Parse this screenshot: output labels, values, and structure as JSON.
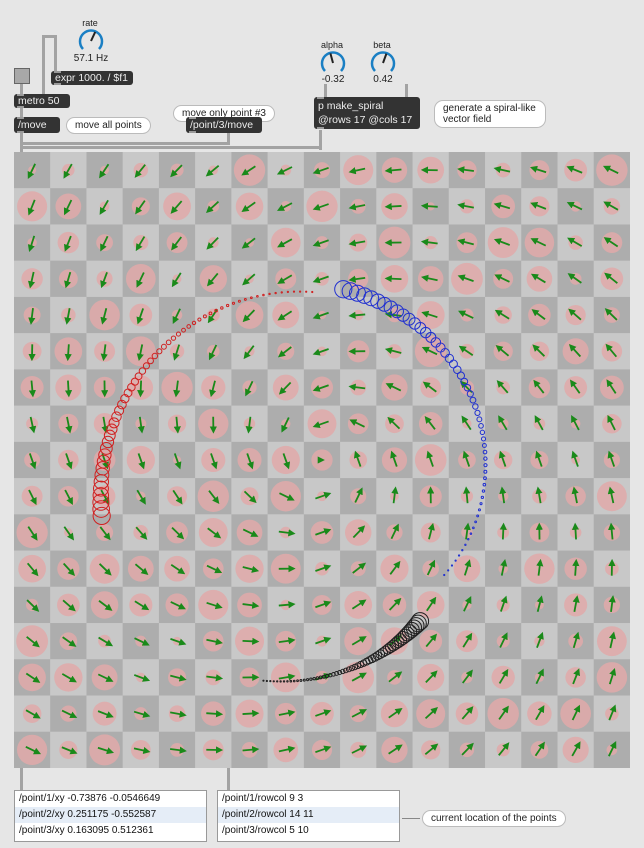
{
  "dials": {
    "rate": {
      "label": "rate",
      "value": "57.1 Hz",
      "angle": 25
    },
    "alpha": {
      "label": "alpha",
      "value": "-0.32",
      "angle": -15
    },
    "beta": {
      "label": "beta",
      "value": "0.42",
      "angle": 20
    }
  },
  "objects": {
    "expr": "expr 1000. / $f1",
    "metro": "metro 50",
    "move": "/move",
    "point3_move": "/point/3/move",
    "spiral_line1": "p make_spiral",
    "spiral_line2": "@rows 17 @cols 17"
  },
  "comments": {
    "move_all": "move all points",
    "move_only": "move only point #3",
    "spiral": "generate a spiral-like vector field",
    "current": "current location of the points"
  },
  "grid": {
    "rows": 17,
    "cols": 17,
    "alpha": -0.32,
    "beta": 0.42
  },
  "xy_messages": [
    "/point/1/xy -0.73876 -0.0546649",
    "/point/2/xy 0.251175 -0.552587",
    "/point/3/xy 0.163095 0.512361"
  ],
  "rowcol_messages": [
    "/point/1/rowcol 9 3",
    "/point/2/rowcol 14 11",
    "/point/3/rowcol 5 10"
  ],
  "colors": {
    "arrow": "#1a8a1a",
    "circle": "#e0a9a9",
    "light": "#c8c8c8",
    "dark": "#adadad",
    "trail1": "#d02020",
    "trail2": "#202020",
    "trail3": "#2030d0"
  }
}
